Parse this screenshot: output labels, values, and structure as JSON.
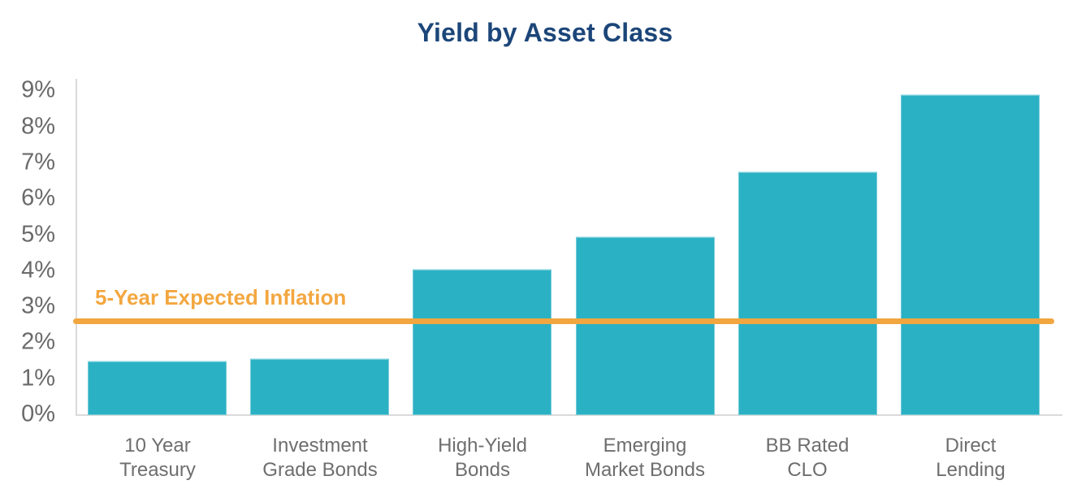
{
  "title": {
    "text": "Yield by Asset Class",
    "color": "#1C4679"
  },
  "chart_data": {
    "type": "bar",
    "title": "Yield by Asset Class",
    "categories": [
      "10 Year\nTreasury",
      "Investment\nGrade Bonds",
      "High-Yield\nBonds",
      "Emerging\nMarket Bonds",
      "BB Rated\nCLO",
      "Direct\nLending"
    ],
    "values": [
      1.5,
      1.55,
      4.05,
      4.95,
      6.75,
      8.9
    ],
    "unit": "%",
    "xlabel": "",
    "ylabel": "",
    "ylim": [
      0,
      9.4
    ],
    "y_ticks": [
      "0%",
      "1%",
      "2%",
      "3%",
      "4%",
      "5%",
      "6%",
      "7%",
      "8%",
      "9%"
    ],
    "grid": false,
    "legend": "none",
    "bar_color": "#2BB1C4",
    "axis_color": "#DADADA",
    "tick_label_color": "#6A6A6A",
    "category_label_color": "#6E6E6E",
    "reference_line": {
      "label": "5-Year Expected Inflation",
      "value": 2.6,
      "color": "#F1A640",
      "label_color": "#F3A740"
    }
  }
}
